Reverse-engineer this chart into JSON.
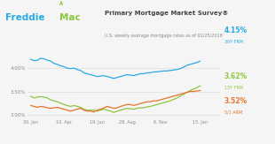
{
  "title": "Primary Mortgage Market Survey®",
  "subtitle": "U.S. weekly average mortgage rates as of 01/25/2018",
  "bg_color": "#f5f5f5",
  "plot_bg": "#f5f5f5",
  "header_bg": "#ffffff",
  "line_30yr_color": "#29abe2",
  "line_15yr_color": "#8dc63f",
  "line_arm_color": "#e8722a",
  "label_30yr": "4.15%",
  "label_30yr_sub": "30Y FRM",
  "label_15yr": "3.62%",
  "label_15yr_sub": "15Y FRM",
  "label_arm": "3.52%",
  "label_arm_sub": "5/1 ARM",
  "xtick_labels": [
    "30. Jan",
    "10. Apr",
    "19. Jun",
    "28. Aug",
    "6. Nov",
    "15. Jan"
  ],
  "ytick_labels": [
    "3.00%",
    "3.50%",
    "4.00%"
  ],
  "ylim": [
    2.93,
    4.38
  ],
  "xlim": [
    -1,
    57
  ],
  "freddie_blue": "#29abe2",
  "freddie_green": "#8dc63f",
  "freddie_text": "#555555",
  "header_separator": "#dddddd"
}
